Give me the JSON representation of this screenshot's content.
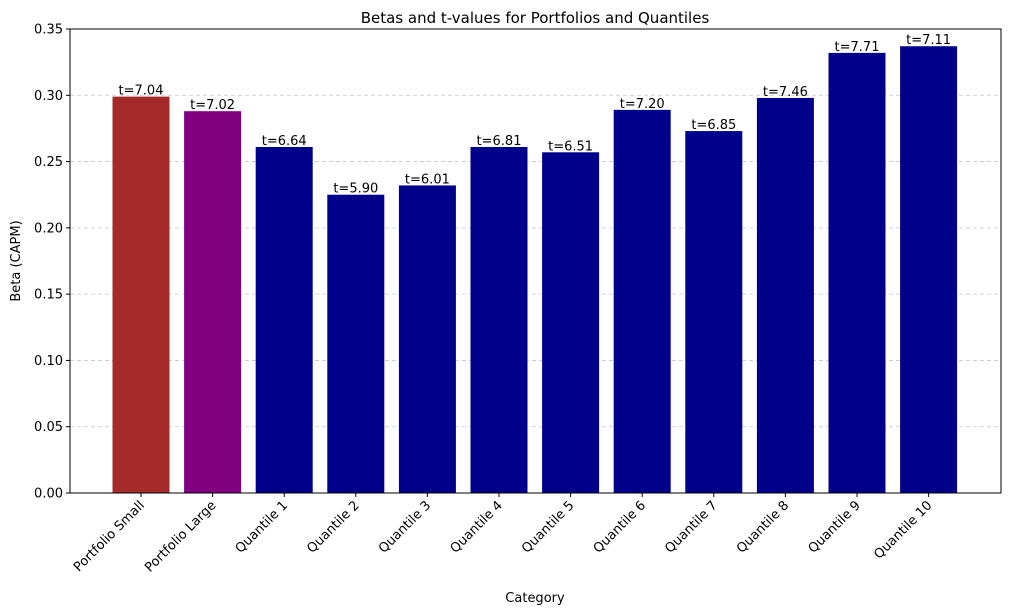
{
  "chart_data": {
    "type": "bar",
    "title": "Betas and t-values for Portfolios and Quantiles",
    "xlabel": "Category",
    "ylabel": "Beta (CAPM)",
    "categories": [
      "Portfolio Small",
      "Portfolio Large",
      "Quantile 1",
      "Quantile 2",
      "Quantile 3",
      "Quantile 4",
      "Quantile 5",
      "Quantile 6",
      "Quantile 7",
      "Quantile 8",
      "Quantile 9",
      "Quantile 10"
    ],
    "values": [
      0.299,
      0.288,
      0.261,
      0.225,
      0.232,
      0.261,
      0.257,
      0.289,
      0.273,
      0.298,
      0.332,
      0.337
    ],
    "data_labels": [
      "t=7.04",
      "t=7.02",
      "t=6.64",
      "t=5.90",
      "t=6.01",
      "t=6.81",
      "t=6.51",
      "t=7.20",
      "t=6.85",
      "t=7.46",
      "t=7.71",
      "t=7.11"
    ],
    "colors": [
      "#a52a2a",
      "#800080",
      "#00008b",
      "#00008b",
      "#00008b",
      "#00008b",
      "#00008b",
      "#00008b",
      "#00008b",
      "#00008b",
      "#00008b",
      "#00008b"
    ],
    "ylim": [
      0,
      0.35
    ],
    "yticks": [
      "0.00",
      "0.05",
      "0.10",
      "0.15",
      "0.20",
      "0.25",
      "0.30",
      "0.35"
    ],
    "grid": "y-dashed",
    "legend": "none"
  }
}
